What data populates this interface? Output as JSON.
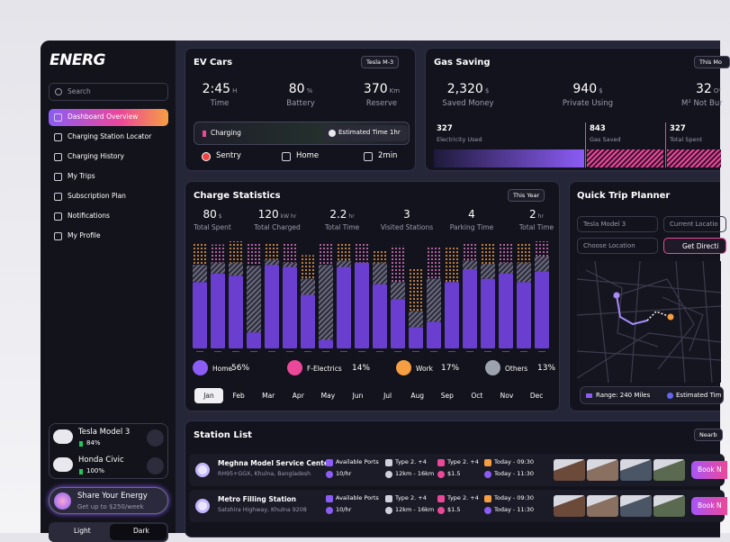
{
  "sidebar": {
    "logo": "ENERG",
    "search": "Search",
    "nav": [
      "Dashboard Overview",
      "Charging Station Locator",
      "Charging History",
      "My Trips",
      "Subscription Plan",
      "Notifications",
      "My Profile"
    ],
    "cars": [
      {
        "name": "Tesla Model 3",
        "battery": "84%"
      },
      {
        "name": "Honda Civic",
        "battery": "100%"
      }
    ],
    "share": {
      "title": "Share Your Energy",
      "subtitle": "Get up to $250/week"
    },
    "theme": [
      "Light",
      "Dark"
    ]
  },
  "ev_cars": {
    "title": "EV Cars",
    "selector": "Tesla M-3",
    "stats": [
      {
        "value": "2:45",
        "unit": "H",
        "label": "Time"
      },
      {
        "value": "80",
        "unit": "%",
        "label": "Battery"
      },
      {
        "value": "370",
        "unit": "Km",
        "label": "Reserve"
      }
    ],
    "status": "Charging",
    "estimate": "Estimated Time 1hr",
    "features": [
      "Sentry",
      "Home",
      "2min"
    ]
  },
  "gas_saving": {
    "title": "Gas Saving",
    "selector": "This Mo",
    "stats": [
      {
        "value": "2,320",
        "unit": "$",
        "label": "Saved Money"
      },
      {
        "value": "940",
        "unit": "$",
        "label": "Private Using"
      },
      {
        "value": "32",
        "unit": "O²",
        "label": "M² Not Bur"
      }
    ],
    "breakdown": [
      {
        "value": "327",
        "label": "Electricity Used"
      },
      {
        "value": "843",
        "label": "Gas Saved"
      },
      {
        "value": "327",
        "label": "Total Spent"
      }
    ]
  },
  "charge_statistics": {
    "title": "Charge Statistics",
    "selector": "This Year",
    "stats": [
      {
        "value": "80",
        "unit": "$",
        "label": "Total Spent"
      },
      {
        "value": "120",
        "unit": "kW hr",
        "label": "Total Charged"
      },
      {
        "value": "2.2",
        "unit": "hr",
        "label": "Total Time"
      },
      {
        "value": "3",
        "label": "Visited Stations"
      },
      {
        "value": "4",
        "label": "Parking Time"
      },
      {
        "value": "2",
        "unit": "hr",
        "label": "Total Time"
      }
    ],
    "ylim": [
      0,
      100
    ],
    "colors": {
      "solid": "#6a3fd0",
      "hatch": "#6a6a7e",
      "dots": [
        "#f5a142",
        "#e879c9"
      ]
    },
    "bars": [
      {
        "solid": 62,
        "hatch": 16,
        "dots": 20
      },
      {
        "solid": 70,
        "hatch": 10,
        "dots": 17
      },
      {
        "solid": 68,
        "hatch": 12,
        "dots": 20
      },
      {
        "solid": 15,
        "hatch": 62,
        "dots": 22
      },
      {
        "solid": 78,
        "hatch": 5,
        "dots": 15
      },
      {
        "solid": 76,
        "hatch": 4,
        "dots": 18
      },
      {
        "solid": 50,
        "hatch": 15,
        "dots": 22
      },
      {
        "solid": 8,
        "hatch": 70,
        "dots": 20
      },
      {
        "solid": 76,
        "hatch": 6,
        "dots": 16
      },
      {
        "solid": 80,
        "hatch": 0,
        "dots": 18
      },
      {
        "solid": 60,
        "hatch": 20,
        "dots": 12
      },
      {
        "solid": 46,
        "hatch": 16,
        "dots": 34
      },
      {
        "solid": 20,
        "hatch": 15,
        "dots": 40
      },
      {
        "solid": 25,
        "hatch": 40,
        "dots": 30
      },
      {
        "solid": 62,
        "hatch": 0,
        "dots": 32
      },
      {
        "solid": 74,
        "hatch": 8,
        "dots": 16
      },
      {
        "solid": 65,
        "hatch": 14,
        "dots": 20
      },
      {
        "solid": 70,
        "hatch": 10,
        "dots": 18
      },
      {
        "solid": 62,
        "hatch": 18,
        "dots": 18
      },
      {
        "solid": 72,
        "hatch": 14,
        "dots": 14
      }
    ],
    "legend": [
      {
        "label": "Home",
        "share": "56%",
        "color": "#8b5cf6"
      },
      {
        "label": "F-Electrics",
        "share": "14%",
        "color": "#ec4899"
      },
      {
        "label": "Work",
        "share": "17%",
        "color": "#f59e42"
      },
      {
        "label": "Others",
        "share": "13%",
        "color": "#9ca3af"
      }
    ],
    "months": [
      "Jan",
      "Feb",
      "Mar",
      "Apr",
      "May",
      "Jun",
      "Jul",
      "Aug",
      "Sep",
      "Oct",
      "Nov",
      "Dec"
    ]
  },
  "quick_trip": {
    "title": "Quick Trip Planner",
    "vehicle": "Tesla Model 3",
    "from": "Current Locatio",
    "to": "Choose Location",
    "action": "Get Directi",
    "range": "Range: 240 Miles",
    "eta": "Estimated Tim"
  },
  "station_list": {
    "title": "Station List",
    "filter": "Nearb",
    "rows": [
      {
        "name": "Meghna Model Service Center",
        "address": "RH95+GGX, Khulna, Bangladesh",
        "ports": "Available Ports",
        "rate": "10/hr",
        "connector_a": "Type 2. +4",
        "distance": "12km - 16km",
        "connector_b": "Type 2. +4",
        "price": "$1.5",
        "open": "Today - 09:30",
        "close": "Today - 11:30",
        "action": "Book N"
      },
      {
        "name": "Metro Filling Station",
        "address": "Satshira Highway, Khulna 9208",
        "ports": "Available Ports",
        "rate": "10/hr",
        "connector_a": "Type 2. +4",
        "distance": "12km - 16km",
        "connector_b": "Type 2. +4",
        "price": "$1.5",
        "open": "Today - 09:30",
        "close": "Today - 11:30",
        "action": "Book N"
      }
    ]
  }
}
